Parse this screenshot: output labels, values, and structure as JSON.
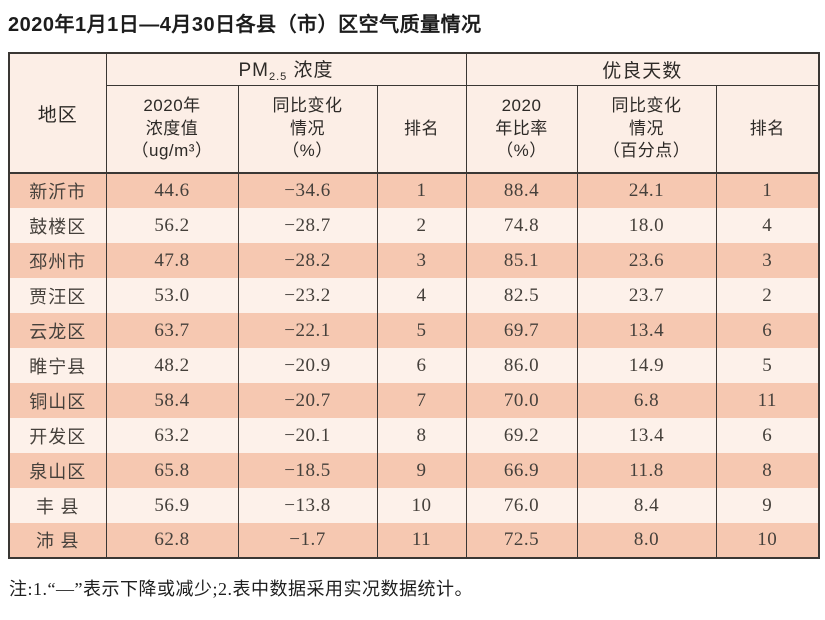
{
  "page": {
    "title": "2020年1月1日—4月30日各县（市）区空气质量情况",
    "note": "注:1.“—”表示下降或减少;2.表中数据采用实况数据统计。"
  },
  "colors": {
    "border": "#3a3734",
    "header_bg": "#fceee6",
    "row_odd_bg": "#f6c8b1",
    "row_even_bg": "#fdf1ea",
    "text_dark": "#45403b",
    "title_color": "#1c1c1c"
  },
  "header": {
    "region": "地区",
    "pm_group_prefix": "PM",
    "pm_group_sub": "2.5",
    "pm_group_suffix": " 浓度",
    "good_group": "优良天数",
    "sub": {
      "pm_value": "2020年\n浓度值\n（ug/m³）",
      "pm_change": "同比变化\n情况\n（%）",
      "rank1": "排名",
      "ratio": "2020\n年比率\n（%）",
      "ratio_change": "同比变化\n情况\n（百分点）",
      "rank2": "排名"
    }
  },
  "chart_data": {
    "type": "table",
    "title": "2020年1月1日—4月30日各县（市）区空气质量情况",
    "column_groups": [
      "PM2.5浓度",
      "优良天数"
    ],
    "columns": [
      "地区",
      "2020年浓度值（ug/m³）",
      "同比变化情况（%）",
      "排名",
      "2020年比率（%）",
      "同比变化情况（百分点）",
      "排名"
    ],
    "rows": [
      {
        "region": "新沂市",
        "pm_value": "44.6",
        "pm_change": "−34.6",
        "pm_rank": "1",
        "ratio": "88.4",
        "ratio_change": "24.1",
        "ratio_rank": "1"
      },
      {
        "region": "鼓楼区",
        "pm_value": "56.2",
        "pm_change": "−28.7",
        "pm_rank": "2",
        "ratio": "74.8",
        "ratio_change": "18.0",
        "ratio_rank": "4"
      },
      {
        "region": "邳州市",
        "pm_value": "47.8",
        "pm_change": "−28.2",
        "pm_rank": "3",
        "ratio": "85.1",
        "ratio_change": "23.6",
        "ratio_rank": "3"
      },
      {
        "region": "贾汪区",
        "pm_value": "53.0",
        "pm_change": "−23.2",
        "pm_rank": "4",
        "ratio": "82.5",
        "ratio_change": "23.7",
        "ratio_rank": "2"
      },
      {
        "region": "云龙区",
        "pm_value": "63.7",
        "pm_change": "−22.1",
        "pm_rank": "5",
        "ratio": "69.7",
        "ratio_change": "13.4",
        "ratio_rank": "6"
      },
      {
        "region": "睢宁县",
        "pm_value": "48.2",
        "pm_change": "−20.9",
        "pm_rank": "6",
        "ratio": "86.0",
        "ratio_change": "14.9",
        "ratio_rank": "5"
      },
      {
        "region": "铜山区",
        "pm_value": "58.4",
        "pm_change": "−20.7",
        "pm_rank": "7",
        "ratio": "70.0",
        "ratio_change": "6.8",
        "ratio_rank": "11"
      },
      {
        "region": "开发区",
        "pm_value": "63.2",
        "pm_change": "−20.1",
        "pm_rank": "8",
        "ratio": "69.2",
        "ratio_change": "13.4",
        "ratio_rank": "6"
      },
      {
        "region": "泉山区",
        "pm_value": "65.8",
        "pm_change": "−18.5",
        "pm_rank": "9",
        "ratio": "66.9",
        "ratio_change": "11.8",
        "ratio_rank": "8"
      },
      {
        "region": "丰 县",
        "pm_value": "56.9",
        "pm_change": "−13.8",
        "pm_rank": "10",
        "ratio": "76.0",
        "ratio_change": "8.4",
        "ratio_rank": "9"
      },
      {
        "region": "沛 县",
        "pm_value": "62.8",
        "pm_change": "−1.7",
        "pm_rank": "11",
        "ratio": "72.5",
        "ratio_change": "8.0",
        "ratio_rank": "10"
      }
    ]
  }
}
